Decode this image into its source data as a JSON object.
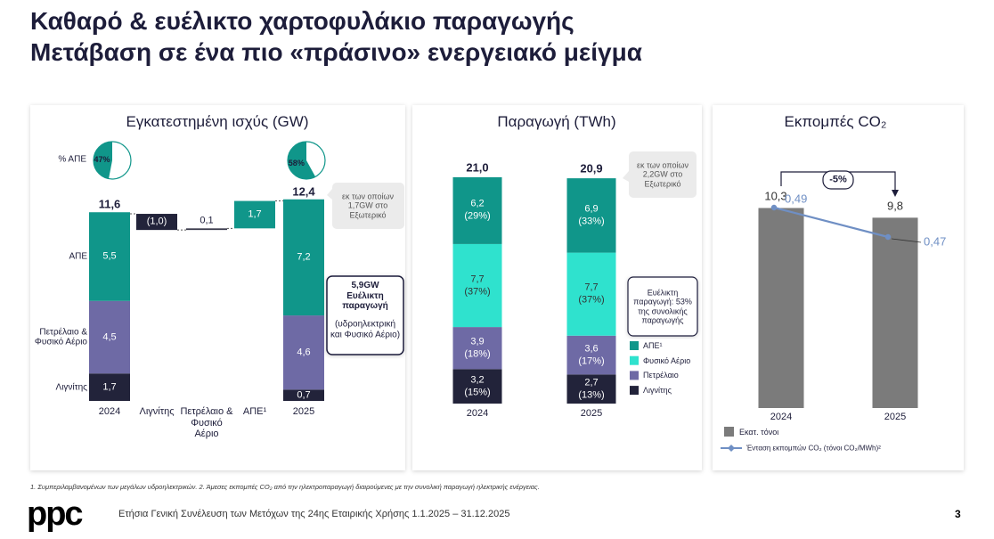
{
  "header": {
    "title": [
      "Καθαρό & ευέλικτο χαρτοφυλάκιο παραγωγής",
      "Μετάβαση σε ένα πιο «πράσινο» ενεργειακό μείγμα"
    ]
  },
  "chart_data": [
    {
      "type": "waterfall",
      "title": "Εγκατεστημένη ισχύς (GW)",
      "categories": [
        "2024",
        "Λιγνίτης",
        "Πετρέλαιο & Φυσικό Αέριο",
        "ΑΠΕ¹",
        "2025"
      ],
      "series": [
        {
          "name": "Λιγνίτης",
          "color": "#22233a",
          "values": [
            1.7,
            null,
            null,
            null,
            0.7
          ],
          "value_labels": [
            "1,7",
            null,
            null,
            null,
            "0,7"
          ]
        },
        {
          "name": "Πετρέλαιο & Φυσικό Αέριο",
          "color": "#6e6aa5",
          "values": [
            4.5,
            null,
            null,
            null,
            4.6
          ],
          "value_labels": [
            "4,5",
            null,
            null,
            null,
            "4,6"
          ]
        },
        {
          "name": "ΑΠΕ",
          "color": "#10968a",
          "values": [
            5.5,
            null,
            null,
            null,
            7.2
          ],
          "value_labels": [
            "5,5",
            null,
            null,
            null,
            "7,2"
          ]
        }
      ],
      "changes": {
        "values": [
          null,
          -1.0,
          0.1,
          1.7,
          null
        ],
        "value_labels": [
          null,
          "(1,0)",
          "0,1",
          "1,7",
          null
        ],
        "colors": [
          null,
          "#22233a",
          "#3a3a4a",
          "#10968a",
          null
        ]
      },
      "totals": {
        "values": [
          11.6,
          null,
          null,
          null,
          12.4
        ],
        "value_labels": [
          "11,6",
          null,
          null,
          null,
          "12,4"
        ]
      },
      "pie": {
        "label": "% ΑΠΕ",
        "color": "#10968a",
        "values": [
          47,
          null,
          null,
          null,
          58
        ],
        "value_labels": [
          "47%",
          null,
          null,
          null,
          "58%"
        ]
      },
      "annotations": [
        "εκ των οποίων 1,7GW στο Εξωτερικό",
        "5,9GW Ευέλικτη παραγωγή",
        "(υδροηλεκτρική και Φυσικό Αέριο)"
      ]
    },
    {
      "type": "stacked_bar",
      "title": "Παραγωγή (TWh)",
      "categories": [
        "2024",
        "2025"
      ],
      "series": [
        {
          "name": "Λιγνίτης",
          "color": "#22233a",
          "values": [
            3.2,
            2.7
          ],
          "value_labels": [
            "3,2",
            "2,7"
          ],
          "share_labels": [
            "(15%)",
            "(13%)"
          ]
        },
        {
          "name": "Πετρέλαιο",
          "color": "#6e6aa5",
          "values": [
            3.9,
            3.6
          ],
          "value_labels": [
            "3,9",
            "3,6"
          ],
          "share_labels": [
            "(18%)",
            "(17%)"
          ]
        },
        {
          "name": "Φυσικό Αέριο",
          "color": "#2fe2ce",
          "values": [
            7.7,
            7.7
          ],
          "value_labels": [
            "7,7",
            "7,7"
          ],
          "share_labels": [
            "(37%)",
            "(37%)"
          ]
        },
        {
          "name": "ΑΠΕ¹",
          "color": "#10968a",
          "values": [
            6.2,
            6.9
          ],
          "value_labels": [
            "6,2",
            "6,9"
          ],
          "share_labels": [
            "(29%)",
            "(33%)"
          ]
        }
      ],
      "totals": {
        "values": [
          21.0,
          20.9
        ],
        "value_labels": [
          "21,0",
          "20,9"
        ]
      },
      "annotations": [
        "εκ των οποίων 2,2GW στο Εξωτερικό",
        "Ευέλικτη παραγωγή: 53% της συνολικής παραγωγής"
      ]
    },
    {
      "type": "bar_line",
      "title": "Εκπομπές CO₂",
      "categories": [
        "2024",
        "2025"
      ],
      "series": [
        {
          "name": "Εκατ. τόνοι",
          "color": "#7b7b7b",
          "values": [
            10.3,
            9.8
          ],
          "value_labels": [
            "10,3",
            "9,8"
          ]
        },
        {
          "name": "Ένταση εκπομπών CO₂ (τόνοι CO₂/MWh)²",
          "type": "line",
          "axis": "y2",
          "color": "#6f8fc4",
          "values": [
            0.49,
            0.47
          ],
          "value_labels": [
            "0,49",
            "0,47"
          ]
        }
      ],
      "annotations": [
        "-5%"
      ]
    }
  ],
  "footnote": "1. Συμπεριλαμβανομένων των μεγάλων υδροηλεκτρικών. 2. Άμεσες εκπομπές CO₂ από την ηλεκτροπαραγωγή διαιρούμενες με την συνολική παραγωγή ηλεκτρικής ενέργειας.",
  "footer": {
    "logo": "ppc",
    "text": "Ετήσια Γενική Συνέλευση των Μετόχων της 24ης Εταιρικής Χρήσης 1.1.2025 – 31.12.2025",
    "page": 3
  }
}
